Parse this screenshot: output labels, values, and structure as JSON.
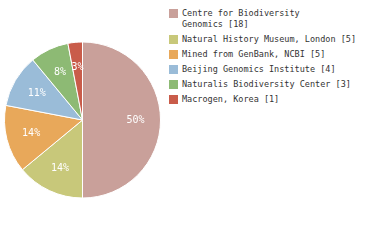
{
  "chart_data": {
    "type": "pie",
    "categories": [
      "Centre for Biodiversity\nGenomics [18]",
      "Natural History Museum, London [5]",
      "Mined from GenBank, NCBI [5]",
      "Beijing Genomics Institute [4]",
      "Naturalis Biodiversity Center [3]",
      "Macrogen, Korea [1]"
    ],
    "values": [
      50,
      14,
      14,
      11,
      8,
      3
    ],
    "value_labels": [
      "50%",
      "14%",
      "14%",
      "11%",
      "8%",
      "3%"
    ],
    "colors": [
      "#c9a09a",
      "#c8c87a",
      "#e8a85a",
      "#9abcd8",
      "#8dba74",
      "#c95c4a"
    ],
    "data_labels": true,
    "legend": "right"
  }
}
